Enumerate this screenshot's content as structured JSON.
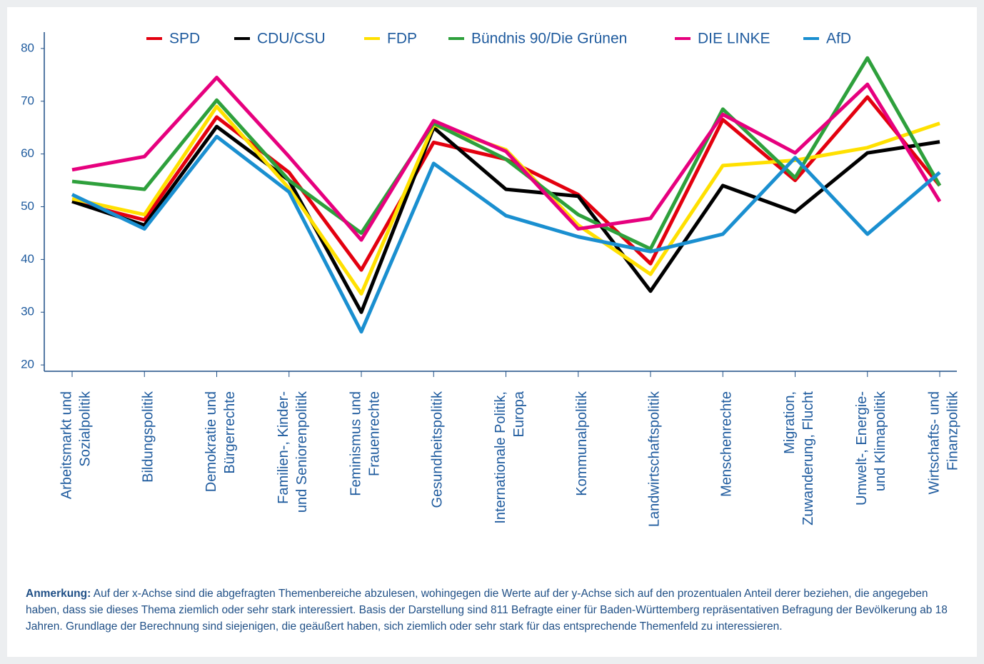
{
  "chart_data": {
    "type": "line",
    "categories": [
      [
        "Arbeitsmarkt und",
        "Sozialpolitik"
      ],
      [
        "Bildungspolitik"
      ],
      [
        "Demokratie und",
        "Bürgerrechte"
      ],
      [
        "Familien-, Kinder-",
        "und Seniorenpolitik"
      ],
      [
        "Feminismus und",
        "Frauenrechte"
      ],
      [
        "Gesundheitspolitik"
      ],
      [
        "Internationale Politik,",
        "Europa"
      ],
      [
        "Kommunalpolitik"
      ],
      [
        "Landwirtschaftspolitik"
      ],
      [
        "Menschenrechte"
      ],
      [
        "Migration,",
        "Zuwanderung, Flucht"
      ],
      [
        "Umwelt-, Energie-",
        "und Klimapolitik"
      ],
      [
        "Wirtschafts- und",
        "Finanzpolitik"
      ]
    ],
    "series": [
      {
        "name": "SPD",
        "color": "#e3000f",
        "values": [
          51,
          47.5,
          67,
          56.5,
          38,
          62.2,
          59,
          52.3,
          39.2,
          66.5,
          55,
          70.8,
          54
        ]
      },
      {
        "name": "CDU/CSU",
        "color": "#000000",
        "values": [
          51,
          46.5,
          65.2,
          55,
          30,
          65,
          53.3,
          52,
          34,
          54,
          49,
          60.2,
          62.3
        ]
      },
      {
        "name": "FDP",
        "color": "#ffe000",
        "values": [
          51.5,
          48.5,
          69,
          53.5,
          33.5,
          65.5,
          60.8,
          46.5,
          37.2,
          57.8,
          58.8,
          61.2,
          65.8
        ]
      },
      {
        "name": "Bündnis 90/Die Grünen",
        "color": "#2ea03c",
        "values": [
          54.8,
          53.3,
          70.2,
          55,
          45,
          65.8,
          59,
          48.5,
          42,
          68.5,
          55.5,
          78.2,
          54
        ]
      },
      {
        "name": "DIE LINKE",
        "color": "#e6007e",
        "values": [
          57,
          59.5,
          74.5,
          59.5,
          43.7,
          66.3,
          60.5,
          45.8,
          47.8,
          67.5,
          60.2,
          73.2,
          51
        ]
      },
      {
        "name": "AfD",
        "color": "#1a8fd0",
        "values": [
          52.3,
          45.8,
          63.3,
          52.8,
          26.3,
          58.2,
          48.3,
          44.3,
          41.5,
          44.8,
          59.3,
          44.8,
          56.5
        ]
      }
    ],
    "ylim": [
      18.8,
      83.1
    ],
    "yticks": [
      20,
      30,
      40,
      50,
      60,
      70,
      80
    ],
    "legend": "top",
    "note": {
      "label": "Anmerkung:",
      "text": "Auf der x-Achse sind die abgefragten Themenbereiche abzulesen, wohingegen die Werte auf der y-Achse sich auf den prozentualen Anteil derer beziehen, die angegeben haben, dass sie dieses Thema ziemlich oder sehr stark interessiert. Basis der Darstellung sind 811 Befragte einer für Baden-Württemberg repräsentativen Befragung der Bevölkerung ab 18 Jahren. Grundlage der Berechnung sind siejenigen, die geäußert haben, sich ziemlich oder sehr stark für das entsprechende Themenfeld zu interessieren."
    }
  }
}
